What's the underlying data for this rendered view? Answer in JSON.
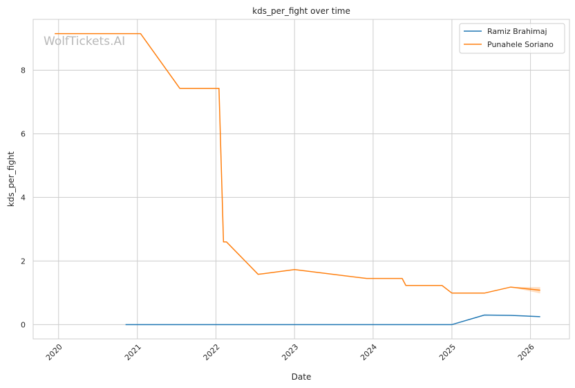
{
  "watermark": "WolfTickets.AI",
  "chart_data": {
    "type": "line",
    "title": "kds_per_fight over time",
    "xlabel": "Date",
    "ylabel": "kds_per_fight",
    "x_axis": "date",
    "xlim": [
      "2019-09-05",
      "2026-07-01"
    ],
    "ylim": [
      -0.45,
      9.6
    ],
    "x_ticks": [
      "2020",
      "2021",
      "2022",
      "2023",
      "2024",
      "2025",
      "2026"
    ],
    "y_ticks": [
      0,
      2,
      4,
      6,
      8
    ],
    "grid": true,
    "legend_position": "top-right",
    "series": [
      {
        "name": "Ramiz Brahimaj",
        "color": "#1f77b4",
        "points": [
          [
            "2020-11-07",
            0
          ],
          [
            "2025-01-01",
            0
          ],
          [
            "2025-06-01",
            0.3
          ],
          [
            "2025-10-01",
            0.29
          ],
          [
            "2026-02-15",
            0.25
          ]
        ]
      },
      {
        "name": "Punahele Soriano",
        "color": "#ff7f0e",
        "band": [
          [
            "2025-10-01",
            1.18,
            1.18
          ],
          [
            "2026-02-15",
            0.98,
            1.18
          ]
        ],
        "points": [
          [
            "2019-12-14",
            9.15
          ],
          [
            "2021-01-16",
            9.15
          ],
          [
            "2021-07-17",
            7.43
          ],
          [
            "2022-01-15",
            7.43
          ],
          [
            "2022-02-05",
            2.6
          ],
          [
            "2022-02-19",
            2.6
          ],
          [
            "2022-07-16",
            1.58
          ],
          [
            "2023-01-01",
            1.73
          ],
          [
            "2023-12-02",
            1.45
          ],
          [
            "2024-05-15",
            1.45
          ],
          [
            "2024-06-01",
            1.23
          ],
          [
            "2024-11-16",
            1.23
          ],
          [
            "2025-01-01",
            0.99
          ],
          [
            "2025-06-01",
            0.99
          ],
          [
            "2025-10-01",
            1.18
          ],
          [
            "2026-02-15",
            1.08
          ]
        ]
      }
    ]
  }
}
